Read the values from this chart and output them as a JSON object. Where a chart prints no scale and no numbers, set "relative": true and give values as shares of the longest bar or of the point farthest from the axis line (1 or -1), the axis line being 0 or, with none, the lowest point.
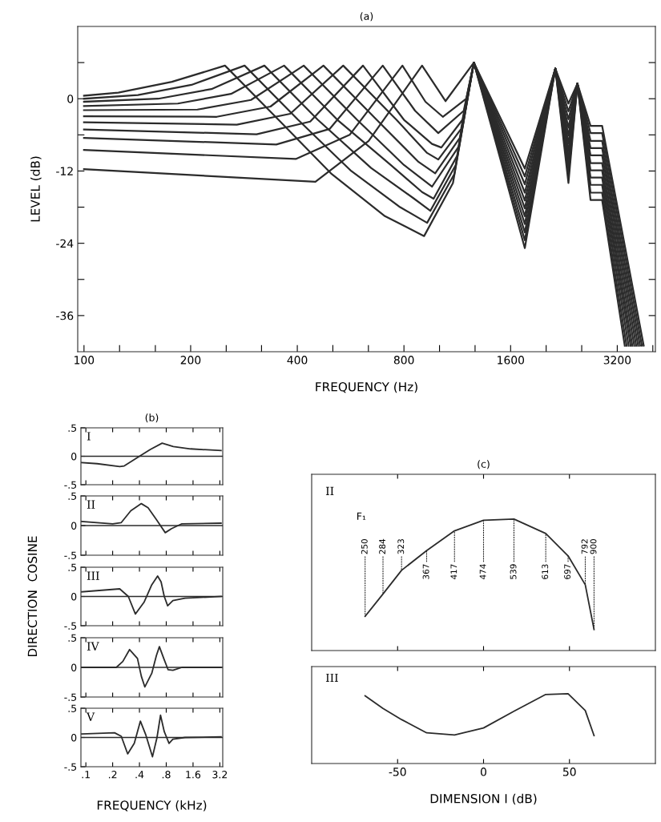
{
  "chart_data": [
    {
      "type": "line",
      "title": "(a)",
      "xlabel": "FREQUENCY (Hz)",
      "ylabel": "LEVEL (dB)",
      "log": "x",
      "xlim": [
        96,
        4100
      ],
      "ylim": [
        -42,
        12
      ],
      "xticks": [
        {
          "value": 100,
          "label": "100"
        },
        {
          "value": 126,
          "label": null
        },
        {
          "value": 159,
          "label": null
        },
        {
          "value": 200,
          "label": "200"
        },
        {
          "value": 252,
          "label": null
        },
        {
          "value": 317,
          "label": null
        },
        {
          "value": 400,
          "label": "400"
        },
        {
          "value": 504,
          "label": null
        },
        {
          "value": 635,
          "label": null
        },
        {
          "value": 800,
          "label": "800"
        },
        {
          "value": 1008,
          "label": null
        },
        {
          "value": 1270,
          "label": null
        },
        {
          "value": 1600,
          "label": "1600"
        },
        {
          "value": 2016,
          "label": null
        },
        {
          "value": 2540,
          "label": null
        },
        {
          "value": 3200,
          "label": "3200"
        },
        {
          "value": 4032,
          "label": null
        }
      ],
      "yticks": [
        {
          "value": 6,
          "label": null
        },
        {
          "value": 0,
          "label": "0"
        },
        {
          "value": -6,
          "label": null
        },
        {
          "value": -12,
          "label": "-12"
        },
        {
          "value": -18,
          "label": null
        },
        {
          "value": -24,
          "label": "-24"
        },
        {
          "value": -30,
          "label": null
        },
        {
          "value": -36,
          "label": "-36"
        }
      ],
      "series": [
        {
          "color": "#2b2b2b",
          "x": [
            100,
            125,
            177,
            250,
            354,
            500,
            707,
            912,
            1100,
            1260,
            1755,
            2140,
            2330,
            2470,
            2690,
            2900,
            3360
          ],
          "values": [
            0.5,
            1.0,
            2.8,
            5.5,
            -3.5,
            -12.5,
            -19.5,
            -22.8,
            -14,
            6,
            -24.8,
            5,
            -14,
            2.5,
            -16.8,
            -16.8,
            -41
          ]
        },
        {
          "color": "#2b2b2b",
          "x": [
            100,
            142,
            201,
            284,
            402,
            568,
            780,
            930,
            1110,
            1260,
            1755,
            2140,
            2330,
            2470,
            2690,
            2900,
            3400
          ],
          "values": [
            0,
            0.6,
            2.3,
            5.5,
            -3.5,
            -12,
            -18,
            -20.6,
            -12.5,
            6,
            -23.5,
            5,
            -12.7,
            2.5,
            -15.6,
            -15.6,
            -41
          ]
        },
        {
          "color": "#2b2b2b",
          "x": [
            100,
            162,
            229,
            323,
            457,
            646,
            850,
            950,
            1120,
            1260,
            1755,
            2140,
            2330,
            2470,
            2690,
            2900,
            3445
          ],
          "values": [
            -0.5,
            0,
            1.6,
            5.5,
            -3.5,
            -11.5,
            -16.5,
            -18.6,
            -11,
            6,
            -22.2,
            5,
            -11.4,
            2.5,
            -14.3,
            -14.3,
            -41
          ]
        },
        {
          "color": "#2b2b2b",
          "x": [
            100,
            184,
            260,
            367,
            519,
            734,
            900,
            970,
            1130,
            1260,
            1755,
            2140,
            2330,
            2470,
            2690,
            2900,
            3490
          ],
          "values": [
            -1.2,
            -0.8,
            0.8,
            5.5,
            -3.5,
            -11,
            -15.5,
            -16.6,
            -9.5,
            6,
            -20.8,
            5,
            -10,
            2.5,
            -13.1,
            -13.1,
            -41
          ]
        },
        {
          "color": "#2b2b2b",
          "x": [
            100,
            209,
            296,
            417,
            590,
            800,
            960,
            1140,
            1260,
            1755,
            2140,
            2330,
            2470,
            2690,
            2900,
            3530
          ],
          "values": [
            -1.9,
            -1.8,
            -0.2,
            5.5,
            -3.5,
            -11,
            -14.6,
            -8,
            6,
            -19.5,
            5,
            -8.7,
            2.5,
            -11.9,
            -11.9,
            -41
          ]
        },
        {
          "color": "#2b2b2b",
          "x": [
            100,
            237,
            336,
            474,
            670,
            880,
            980,
            1150,
            1260,
            1755,
            2140,
            2330,
            2470,
            2690,
            2900,
            3575
          ],
          "values": [
            -2.9,
            -3,
            -1.3,
            5.5,
            -3.5,
            -10.5,
            -12.4,
            -6.5,
            6,
            -18.2,
            5,
            -7.4,
            2.5,
            -10.7,
            -10.7,
            -41
          ]
        },
        {
          "color": "#2b2b2b",
          "x": [
            100,
            270,
            382,
            539,
            762,
            930,
            1000,
            1160,
            1260,
            1755,
            2140,
            2330,
            2470,
            2690,
            2900,
            3620
          ],
          "values": [
            -3.9,
            -4.3,
            -2.5,
            5.5,
            -3.5,
            -9,
            -10.1,
            -5,
            6,
            -16.9,
            5,
            -6.1,
            2.5,
            -9.4,
            -9.4,
            -41
          ]
        },
        {
          "color": "#2b2b2b",
          "x": [
            100,
            307,
            435,
            613,
            800,
            960,
            1020,
            1170,
            1260,
            1755,
            2140,
            2330,
            2470,
            2690,
            2900,
            3665
          ],
          "values": [
            -5.1,
            -5.9,
            -3.8,
            5.5,
            -3.5,
            -7.5,
            -8.1,
            -3.5,
            6,
            -15.6,
            5,
            -4.8,
            2.5,
            -8.2,
            -8.2,
            -41
          ]
        },
        {
          "color": "#2b2b2b",
          "x": [
            100,
            349,
            494,
            697,
            860,
            1000,
            1180,
            1260,
            1755,
            2140,
            2330,
            2470,
            2690,
            2900,
            3710
          ],
          "values": [
            -6.5,
            -7.6,
            -5,
            5.5,
            -2,
            -5.7,
            -2,
            6,
            -14.2,
            5,
            -3.4,
            2.5,
            -7,
            -7,
            -41
          ]
        },
        {
          "color": "#2b2b2b",
          "x": [
            100,
            396,
            562,
            792,
            920,
            1030,
            1200,
            1260,
            1755,
            2140,
            2330,
            2470,
            2690,
            2900,
            3755
          ],
          "values": [
            -8.5,
            -10,
            -6,
            5.5,
            -0.5,
            -3,
            0,
            6,
            -12.9,
            5,
            -2.1,
            2.5,
            -5.7,
            -5.7,
            -41
          ]
        },
        {
          "color": "#2b2b2b",
          "x": [
            100,
            450,
            636,
            900,
            1048,
            1260,
            1755,
            2140,
            2330,
            2470,
            2690,
            2900,
            3800
          ],
          "values": [
            -11.7,
            -13.8,
            -7,
            5.5,
            -0.4,
            6,
            -11.6,
            5,
            -0.8,
            2.5,
            -4.5,
            -4.5,
            -41
          ]
        }
      ]
    },
    {
      "type": "line",
      "title": "(b)",
      "log": "x",
      "xlim": [
        0.088,
        3.45
      ],
      "ylim": [
        -0.5,
        0.5
      ],
      "tick_labels": "y",
      "annotations": [
        "I"
      ],
      "xticks": [
        {
          "value": 0.1,
          "label": null
        },
        {
          "value": 0.2,
          "label": null
        },
        {
          "value": 0.4,
          "label": null
        },
        {
          "value": 0.8,
          "label": null
        },
        {
          "value": 1.6,
          "label": null
        },
        {
          "value": 3.2,
          "label": null
        }
      ],
      "yticks": [
        {
          "value": 0.5,
          "label": ".5"
        },
        0,
        {
          "value": -0.5,
          "label": "-.5"
        }
      ],
      "ref_lines": [
        {
          "axis": "y",
          "value": 0
        }
      ],
      "series": [
        {
          "color": "#2b2b2b",
          "x": [
            0.09,
            0.134,
            0.24,
            0.27,
            0.4,
            0.53,
            0.72,
            0.96,
            1.5,
            3.3
          ],
          "values": [
            -0.11,
            -0.13,
            -0.18,
            -0.17,
            0,
            0.12,
            0.23,
            0.17,
            0.13,
            0.1
          ]
        }
      ]
    },
    {
      "type": "line",
      "log": "x",
      "xlim": [
        0.088,
        3.45
      ],
      "ylim": [
        -0.5,
        0.5
      ],
      "tick_labels": "y",
      "annotations": [
        "II"
      ],
      "xticks": [
        {
          "value": 0.1,
          "label": null
        },
        {
          "value": 0.2,
          "label": null
        },
        {
          "value": 0.4,
          "label": null
        },
        {
          "value": 0.8,
          "label": null
        },
        {
          "value": 1.6,
          "label": null
        },
        {
          "value": 3.2,
          "label": null
        }
      ],
      "yticks": [
        {
          "value": 0.5,
          "label": ".5"
        },
        0,
        {
          "value": -0.5,
          "label": "-.5"
        }
      ],
      "ref_lines": [
        {
          "axis": "y",
          "value": 0
        }
      ],
      "series": [
        {
          "color": "#2b2b2b",
          "x": [
            0.09,
            0.2,
            0.25,
            0.32,
            0.42,
            0.5,
            0.62,
            0.78,
            0.92,
            1.2,
            3.3
          ],
          "values": [
            0.07,
            0.03,
            0.05,
            0.25,
            0.37,
            0.3,
            0.1,
            -0.12,
            -0.05,
            0.03,
            0.04
          ]
        }
      ]
    },
    {
      "type": "line",
      "log": "x",
      "xlim": [
        0.088,
        3.45
      ],
      "ylim": [
        -0.5,
        0.5
      ],
      "tick_labels": "y",
      "ylabel": "DIRECTION  COSINE",
      "annotations": [
        "III"
      ],
      "xticks": [
        {
          "value": 0.1,
          "label": null
        },
        {
          "value": 0.2,
          "label": null
        },
        {
          "value": 0.4,
          "label": null
        },
        {
          "value": 0.8,
          "label": null
        },
        {
          "value": 1.6,
          "label": null
        },
        {
          "value": 3.2,
          "label": null
        }
      ],
      "yticks": [
        {
          "value": 0.5,
          "label": ".5"
        },
        0,
        {
          "value": -0.5,
          "label": "-.5"
        }
      ],
      "ref_lines": [
        {
          "axis": "y",
          "value": 0
        }
      ],
      "series": [
        {
          "color": "#2b2b2b",
          "x": [
            0.09,
            0.24,
            0.3,
            0.36,
            0.45,
            0.55,
            0.64,
            0.7,
            0.76,
            0.83,
            0.95,
            1.3,
            3.3
          ],
          "values": [
            0.08,
            0.13,
            0.0,
            -0.3,
            -0.1,
            0.2,
            0.35,
            0.25,
            0.0,
            -0.16,
            -0.07,
            -0.03,
            0.0
          ]
        }
      ]
    },
    {
      "type": "line",
      "log": "x",
      "xlim": [
        0.088,
        3.45
      ],
      "ylim": [
        -0.5,
        0.5
      ],
      "tick_labels": "y",
      "annotations": [
        "IV"
      ],
      "xticks": [
        {
          "value": 0.1,
          "label": null
        },
        {
          "value": 0.2,
          "label": null
        },
        {
          "value": 0.4,
          "label": null
        },
        {
          "value": 0.8,
          "label": null
        },
        {
          "value": 1.6,
          "label": null
        },
        {
          "value": 3.2,
          "label": null
        }
      ],
      "yticks": [
        {
          "value": 0.5,
          "label": ".5"
        },
        0,
        {
          "value": -0.5,
          "label": "-.5"
        }
      ],
      "ref_lines": [
        {
          "axis": "y",
          "value": 0
        }
      ],
      "series": [
        {
          "color": "#2b2b2b",
          "x": [
            0.09,
            0.22,
            0.26,
            0.31,
            0.38,
            0.42,
            0.46,
            0.55,
            0.62,
            0.67,
            0.75,
            0.84,
            0.95,
            1.2,
            3.3
          ],
          "values": [
            0.0,
            0.0,
            0.1,
            0.3,
            0.15,
            -0.15,
            -0.33,
            -0.1,
            0.2,
            0.35,
            0.15,
            -0.04,
            -0.05,
            0.0,
            0.0
          ]
        }
      ]
    },
    {
      "type": "line",
      "log": "x",
      "xlim": [
        0.088,
        3.45
      ],
      "ylim": [
        -0.5,
        0.5
      ],
      "xlabel": "FREQUENCY (kHz)",
      "annotations": [
        "V"
      ],
      "xticks": [
        {
          "value": 0.1,
          "label": ".1"
        },
        {
          "value": 0.2,
          "label": ".2"
        },
        {
          "value": 0.4,
          "label": ".4"
        },
        {
          "value": 0.8,
          "label": ".8"
        },
        {
          "value": 1.6,
          "label": "1.6"
        },
        {
          "value": 3.2,
          "label": "3.2"
        }
      ],
      "yticks": [
        {
          "value": 0.5,
          "label": ".5"
        },
        0,
        {
          "value": -0.5,
          "label": "-.5"
        }
      ],
      "ref_lines": [
        {
          "axis": "y",
          "value": 0
        }
      ],
      "series": [
        {
          "color": "#2b2b2b",
          "x": [
            0.09,
            0.21,
            0.25,
            0.295,
            0.35,
            0.41,
            0.47,
            0.56,
            0.63,
            0.69,
            0.76,
            0.86,
            0.95,
            1.3,
            3.3
          ],
          "values": [
            0.06,
            0.08,
            0.02,
            -0.28,
            -0.1,
            0.28,
            0.05,
            -0.33,
            0.0,
            0.38,
            0.1,
            -0.1,
            -0.03,
            0.0,
            0.01
          ]
        }
      ]
    },
    {
      "type": "line",
      "title": "(c)",
      "relative": true,
      "xlim": [
        -100,
        100
      ],
      "xticks": [
        -50,
        0,
        50
      ],
      "tick_labels": false,
      "annotations": [
        "II",
        "F₁",
        {
          "text": "250",
          "x": -68.9,
          "y": 0.26
        },
        {
          "text": "284",
          "x": -58.5,
          "y": 0.43
        },
        {
          "text": "323",
          "x": -47.7,
          "y": 0.61
        },
        {
          "text": "367",
          "x": -33.1,
          "y": 0.76
        },
        {
          "text": "417",
          "x": -16.9,
          "y": 0.91
        },
        {
          "text": "474",
          "x": 0,
          "y": 0.99
        },
        {
          "text": "539",
          "x": 17.7,
          "y": 1.0
        },
        {
          "text": "613",
          "x": 36.2,
          "y": 0.89
        },
        {
          "text": "697",
          "x": 49.2,
          "y": 0.72
        },
        {
          "text": "792",
          "x": 59.2,
          "y": 0.5
        },
        {
          "text": "900",
          "x": 64.3,
          "y": 0.16
        }
      ],
      "series": [
        {
          "color": "#2b2b2b",
          "x": [
            -68.9,
            -58.5,
            -47.7,
            -33.1,
            -16.9,
            0,
            17.7,
            36.2,
            49.2,
            59.2,
            64.3
          ],
          "values": [
            0.26,
            0.43,
            0.61,
            0.76,
            0.91,
            0.99,
            1.0,
            0.89,
            0.72,
            0.5,
            0.16
          ]
        }
      ]
    },
    {
      "type": "line",
      "relative": true,
      "xlim": [
        -100,
        100
      ],
      "xticks": [
        -50,
        0,
        50
      ],
      "tick_labels": "x",
      "xlabel": "DIMENSION I (dB)",
      "annotations": [
        "III"
      ],
      "series": [
        {
          "color": "#2b2b2b",
          "x": [
            -68.9,
            -58.5,
            -47.7,
            -33.1,
            -16.9,
            0,
            17.7,
            36.2,
            49.2,
            59.2,
            64.3
          ],
          "values": [
            0.97,
            0.79,
            0.63,
            0.44,
            0.41,
            0.51,
            0.75,
            0.99,
            1.0,
            0.76,
            0.4
          ]
        }
      ]
    }
  ]
}
